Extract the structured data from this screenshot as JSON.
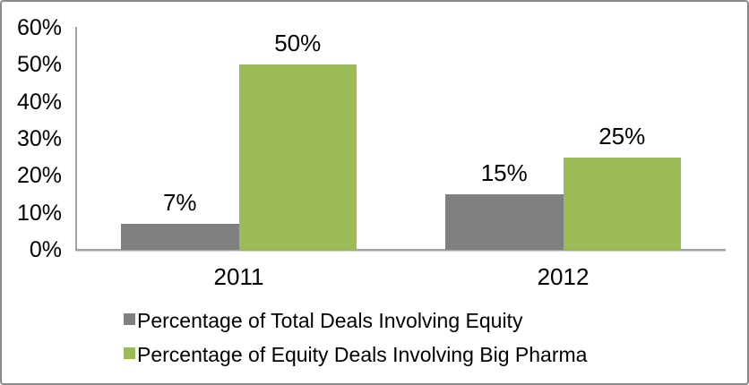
{
  "frame": {
    "background": "#ffffff",
    "border_color": "#8a8a8a"
  },
  "chart_data": {
    "type": "bar",
    "title": "",
    "xlabel": "",
    "ylabel": "",
    "categories": [
      "2011",
      "2012"
    ],
    "series": [
      {
        "name": "Percentage of Total Deals Involving Equity",
        "color": "#808080",
        "values": [
          7,
          15
        ],
        "data_labels": [
          "7%",
          "15%"
        ]
      },
      {
        "name": "Percentage of Equity Deals Involving Big Pharma",
        "color": "#9BBB59",
        "values": [
          50,
          25
        ],
        "data_labels": [
          "50%",
          "25%"
        ]
      }
    ],
    "y_axis": {
      "min": 0,
      "max": 60,
      "step": 10,
      "tick_labels": [
        "0%",
        "10%",
        "20%",
        "30%",
        "40%",
        "50%",
        "60%"
      ]
    },
    "grid": false,
    "legend_position": "bottom",
    "axis_color": "#a0a0a0",
    "text_color": "#000000"
  }
}
